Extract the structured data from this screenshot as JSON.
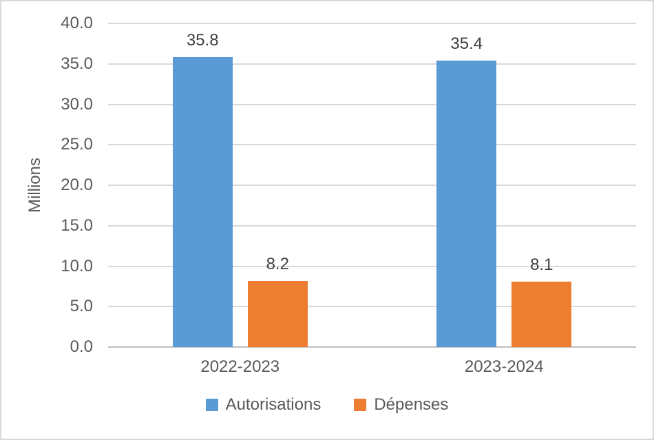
{
  "chart_data": {
    "type": "bar",
    "title": "",
    "ylabel": "Millions",
    "xlabel": "",
    "categories": [
      "2022-2023",
      "2023-2024"
    ],
    "series": [
      {
        "name": "Autorisations",
        "color": "#5B9BD5",
        "values": [
          35.8,
          35.4
        ],
        "labels": [
          "35.8",
          "35.4"
        ]
      },
      {
        "name": "Dépenses",
        "color": "#ED7D31",
        "values": [
          8.2,
          8.1
        ],
        "labels": [
          "8.2",
          "8.1"
        ]
      }
    ],
    "ylim": [
      0,
      40
    ],
    "ytick_step": 5,
    "yticks": [
      {
        "value": 40,
        "label": "40.0"
      },
      {
        "value": 35,
        "label": "35.0"
      },
      {
        "value": 30,
        "label": "30.0"
      },
      {
        "value": 25,
        "label": "25.0"
      },
      {
        "value": 20,
        "label": "20.0"
      },
      {
        "value": 15,
        "label": "15.0"
      },
      {
        "value": 10,
        "label": "10.0"
      },
      {
        "value": 5,
        "label": "5.0"
      },
      {
        "value": 0,
        "label": "0.0"
      }
    ],
    "grid": true,
    "legend_position": "bottom",
    "colors": {
      "grid": "#D9D9D9",
      "axis_line": "#BFBFBF",
      "tick_text": "#595959",
      "data_label_text": "#404040",
      "frame_border": "#D9D9D9",
      "background": "#FFFFFF"
    }
  }
}
